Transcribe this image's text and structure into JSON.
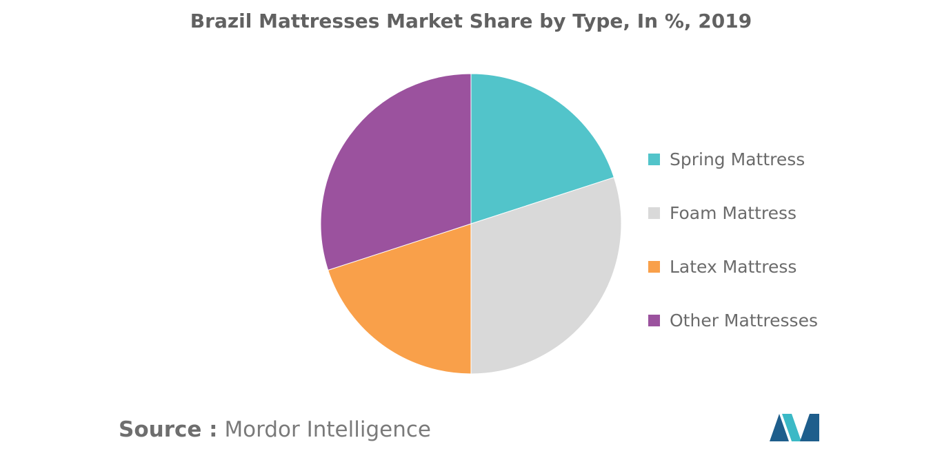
{
  "chart_data": {
    "type": "pie",
    "title": "Brazil Mattresses Market Share by Type, In %, 2019",
    "slices": [
      {
        "name": "Spring Mattress",
        "value": 20,
        "color": "#52C4CA"
      },
      {
        "name": "Foam Mattress",
        "value": 30,
        "color": "#D9D9D9"
      },
      {
        "name": "Latex Mattress",
        "value": 20,
        "color": "#F9A04A"
      },
      {
        "name": "Other Mattresses",
        "value": 30,
        "color": "#9B529E"
      }
    ],
    "legend_position": "right"
  },
  "source": {
    "prefix": "Source :",
    "text": "Mordor Intelligence"
  },
  "logo": {
    "colors": [
      "#1E5E8C",
      "#3BB9C6"
    ]
  }
}
